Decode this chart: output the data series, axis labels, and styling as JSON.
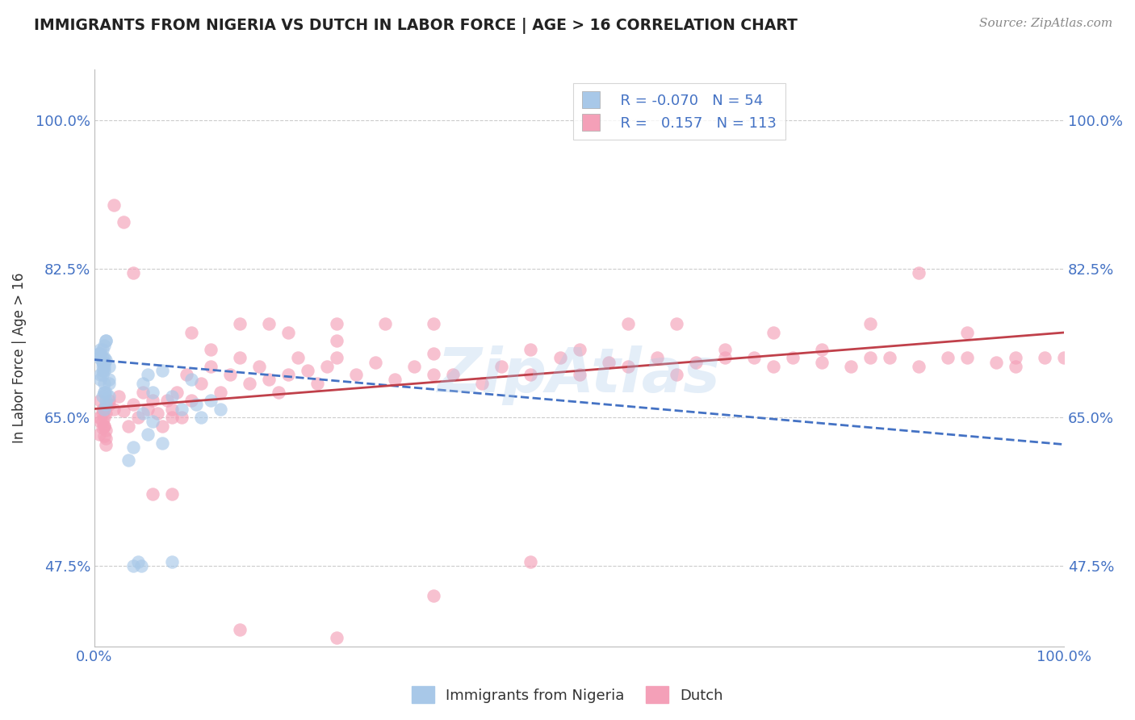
{
  "title": "IMMIGRANTS FROM NIGERIA VS DUTCH IN LABOR FORCE | AGE > 16 CORRELATION CHART",
  "source": "Source: ZipAtlas.com",
  "ylabel": "In Labor Force | Age > 16",
  "legend_label1": "Immigrants from Nigeria",
  "legend_label2": "Dutch",
  "R1": -0.07,
  "N1": 54,
  "R2": 0.157,
  "N2": 113,
  "color_blue": "#a8c8e8",
  "color_pink": "#f4a0b8",
  "color_blue_line": "#4472c4",
  "color_pink_line": "#c0404a",
  "xlim": [
    0.0,
    1.0
  ],
  "ylim": [
    0.38,
    1.06
  ],
  "yticks": [
    0.475,
    0.65,
    0.825,
    1.0
  ],
  "ytick_labels": [
    "47.5%",
    "65.0%",
    "82.5%",
    "100.0%"
  ],
  "xticks": [
    0.0,
    1.0
  ],
  "xtick_labels": [
    "0.0%",
    "100.0%"
  ],
  "blue_trend_x0": 0.0,
  "blue_trend_y0": 0.718,
  "blue_trend_x1": 1.0,
  "blue_trend_y1": 0.618,
  "pink_trend_x0": 0.0,
  "pink_trend_y0": 0.66,
  "pink_trend_x1": 1.0,
  "pink_trend_y1": 0.75,
  "blue_scatter_x": [
    0.005,
    0.008,
    0.01,
    0.012,
    0.015,
    0.005,
    0.008,
    0.01,
    0.012,
    0.01,
    0.006,
    0.008,
    0.012,
    0.015,
    0.01,
    0.008,
    0.01,
    0.012,
    0.006,
    0.008,
    0.01,
    0.015,
    0.012,
    0.008,
    0.01,
    0.006,
    0.008,
    0.005,
    0.01,
    0.012,
    0.015,
    0.008,
    0.01,
    0.05,
    0.055,
    0.06,
    0.07,
    0.08,
    0.09,
    0.1,
    0.105,
    0.11,
    0.12,
    0.13,
    0.055,
    0.06,
    0.05,
    0.07,
    0.04,
    0.035,
    0.08,
    0.04,
    0.045,
    0.048
  ],
  "blue_scatter_y": [
    0.72,
    0.73,
    0.715,
    0.74,
    0.71,
    0.725,
    0.705,
    0.735,
    0.718,
    0.68,
    0.695,
    0.71,
    0.665,
    0.675,
    0.72,
    0.7,
    0.69,
    0.68,
    0.73,
    0.715,
    0.705,
    0.695,
    0.74,
    0.72,
    0.71,
    0.7,
    0.715,
    0.725,
    0.68,
    0.67,
    0.69,
    0.675,
    0.66,
    0.69,
    0.7,
    0.68,
    0.705,
    0.675,
    0.66,
    0.695,
    0.665,
    0.65,
    0.67,
    0.66,
    0.63,
    0.645,
    0.655,
    0.62,
    0.615,
    0.6,
    0.48,
    0.475,
    0.48,
    0.475
  ],
  "pink_scatter_x": [
    0.005,
    0.008,
    0.01,
    0.012,
    0.015,
    0.005,
    0.008,
    0.01,
    0.012,
    0.006,
    0.008,
    0.01,
    0.012,
    0.015,
    0.01,
    0.008,
    0.01,
    0.012,
    0.006,
    0.02,
    0.025,
    0.03,
    0.035,
    0.04,
    0.045,
    0.05,
    0.055,
    0.06,
    0.065,
    0.07,
    0.075,
    0.08,
    0.085,
    0.09,
    0.095,
    0.1,
    0.11,
    0.12,
    0.13,
    0.14,
    0.15,
    0.16,
    0.17,
    0.18,
    0.19,
    0.2,
    0.21,
    0.22,
    0.23,
    0.24,
    0.25,
    0.27,
    0.29,
    0.31,
    0.33,
    0.35,
    0.37,
    0.4,
    0.42,
    0.45,
    0.48,
    0.5,
    0.53,
    0.55,
    0.58,
    0.6,
    0.62,
    0.65,
    0.68,
    0.7,
    0.72,
    0.75,
    0.78,
    0.8,
    0.82,
    0.85,
    0.88,
    0.9,
    0.93,
    0.95,
    0.98,
    1.0,
    0.1,
    0.15,
    0.2,
    0.25,
    0.3,
    0.35,
    0.02,
    0.03,
    0.04,
    0.06,
    0.08,
    0.12,
    0.18,
    0.25,
    0.35,
    0.45,
    0.5,
    0.6,
    0.7,
    0.8,
    0.9,
    0.95,
    0.85,
    0.75,
    0.65,
    0.55,
    0.45,
    0.35,
    0.25,
    0.15,
    0.08
  ],
  "pink_scatter_y": [
    0.65,
    0.66,
    0.64,
    0.655,
    0.67,
    0.63,
    0.645,
    0.66,
    0.635,
    0.67,
    0.655,
    0.64,
    0.625,
    0.665,
    0.65,
    0.638,
    0.628,
    0.618,
    0.645,
    0.66,
    0.675,
    0.658,
    0.64,
    0.665,
    0.65,
    0.68,
    0.66,
    0.67,
    0.655,
    0.64,
    0.67,
    0.66,
    0.68,
    0.65,
    0.7,
    0.67,
    0.69,
    0.71,
    0.68,
    0.7,
    0.72,
    0.69,
    0.71,
    0.695,
    0.68,
    0.7,
    0.72,
    0.705,
    0.69,
    0.71,
    0.72,
    0.7,
    0.715,
    0.695,
    0.71,
    0.725,
    0.7,
    0.69,
    0.71,
    0.7,
    0.72,
    0.7,
    0.715,
    0.71,
    0.72,
    0.7,
    0.715,
    0.72,
    0.72,
    0.71,
    0.72,
    0.715,
    0.71,
    0.72,
    0.72,
    0.71,
    0.72,
    0.72,
    0.715,
    0.71,
    0.72,
    0.72,
    0.75,
    0.76,
    0.75,
    0.74,
    0.76,
    0.76,
    0.9,
    0.88,
    0.82,
    0.56,
    0.65,
    0.73,
    0.76,
    0.76,
    0.7,
    0.73,
    0.73,
    0.76,
    0.75,
    0.76,
    0.75,
    0.72,
    0.82,
    0.73,
    0.73,
    0.76,
    0.48,
    0.44,
    0.39,
    0.4,
    0.56
  ],
  "watermark": "ZipAtlas",
  "background_color": "#ffffff",
  "grid_color": "#cccccc",
  "title_color": "#222222",
  "tick_color": "#4472c4"
}
